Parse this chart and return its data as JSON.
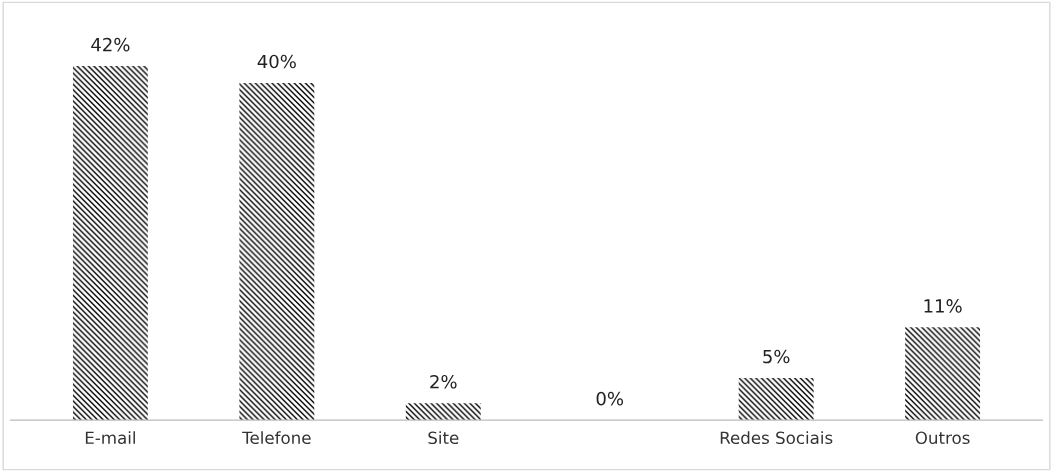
{
  "chart_data": {
    "type": "bar",
    "categories": [
      "E-mail",
      "Telefone",
      "Site",
      null,
      "Redes Sociais",
      "Outros"
    ],
    "values": [
      42,
      40,
      2,
      0,
      5,
      11
    ],
    "value_labels": [
      "42%",
      "40%",
      "2%",
      "0%",
      "5%",
      "11%"
    ],
    "color": "#000000",
    "grid": false,
    "legend": false
  }
}
